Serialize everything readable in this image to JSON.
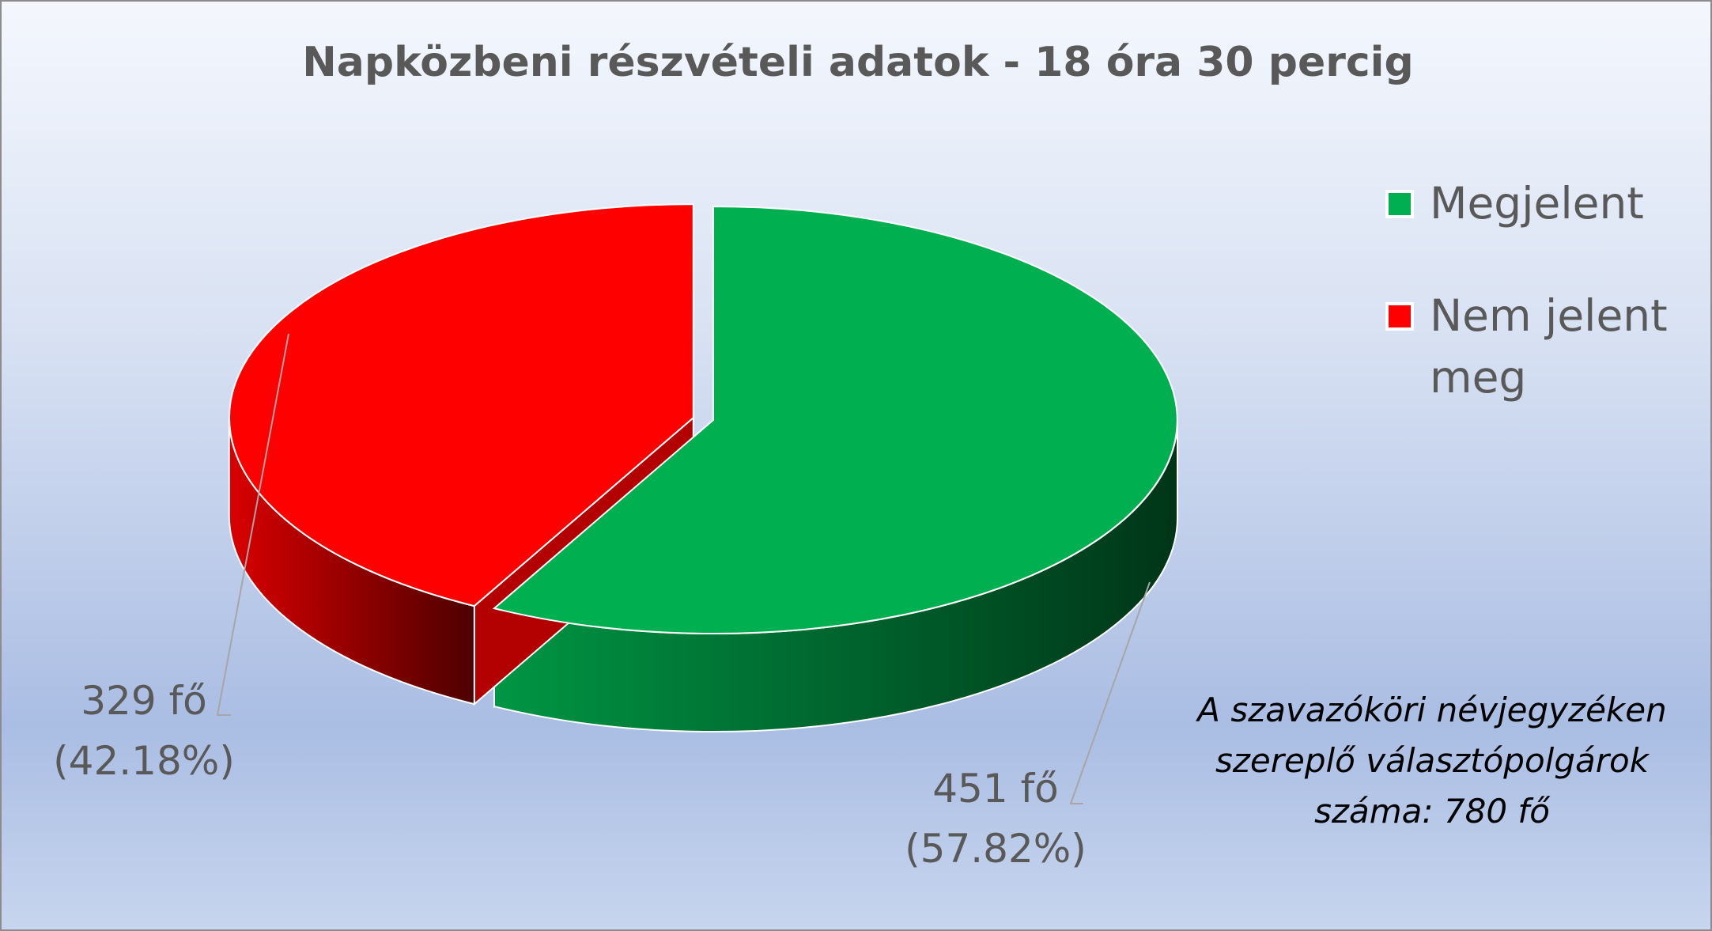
{
  "chart_data": {
    "type": "pie3d",
    "title": "Napközbeni részvételi adatok - 18 óra 30 percig",
    "categories": [
      "Megjelent",
      "Nem jelent meg"
    ],
    "values": [
      451,
      329
    ],
    "value_labels": [
      "451 fő\n(57.82%)",
      "329 fő\n(42.18%)"
    ],
    "colors": [
      "#00b050",
      "#ff0000"
    ],
    "legend": "right",
    "annotation": "A szavazóköri névjegyzéken szereplő választópolgárok száma: 780 fő"
  }
}
